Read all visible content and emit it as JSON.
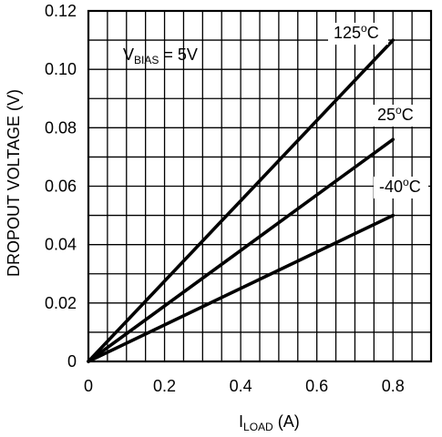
{
  "chart_data": {
    "type": "line",
    "x_ticks": [
      "0",
      "0.2",
      "0.4",
      "0.6",
      "0.8"
    ],
    "y_ticks": [
      "0",
      "0.02",
      "0.04",
      "0.06",
      "0.08",
      "0.10",
      "0.12"
    ],
    "xlabel": {
      "main": "I",
      "sub": "LOAD",
      "unit": " (A)"
    },
    "ylabel": "DROPOUT VOLTAGE (V)",
    "xlim": [
      0,
      0.9
    ],
    "ylim": [
      0,
      0.12
    ],
    "grid": true,
    "annotation": {
      "main": "V",
      "sub": "BIAS",
      "rest": " = 5V"
    },
    "series": [
      {
        "name": {
          "value": "125",
          "sup": "o",
          "unit": "C"
        },
        "x": [
          0,
          0.8
        ],
        "y": [
          0,
          0.11
        ]
      },
      {
        "name": {
          "value": "25",
          "sup": "o",
          "unit": "C"
        },
        "x": [
          0,
          0.8
        ],
        "y": [
          0,
          0.076
        ]
      },
      {
        "name": {
          "value": "-40",
          "sup": "o",
          "unit": "C"
        },
        "x": [
          0,
          0.8
        ],
        "y": [
          0,
          0.05
        ]
      }
    ]
  }
}
